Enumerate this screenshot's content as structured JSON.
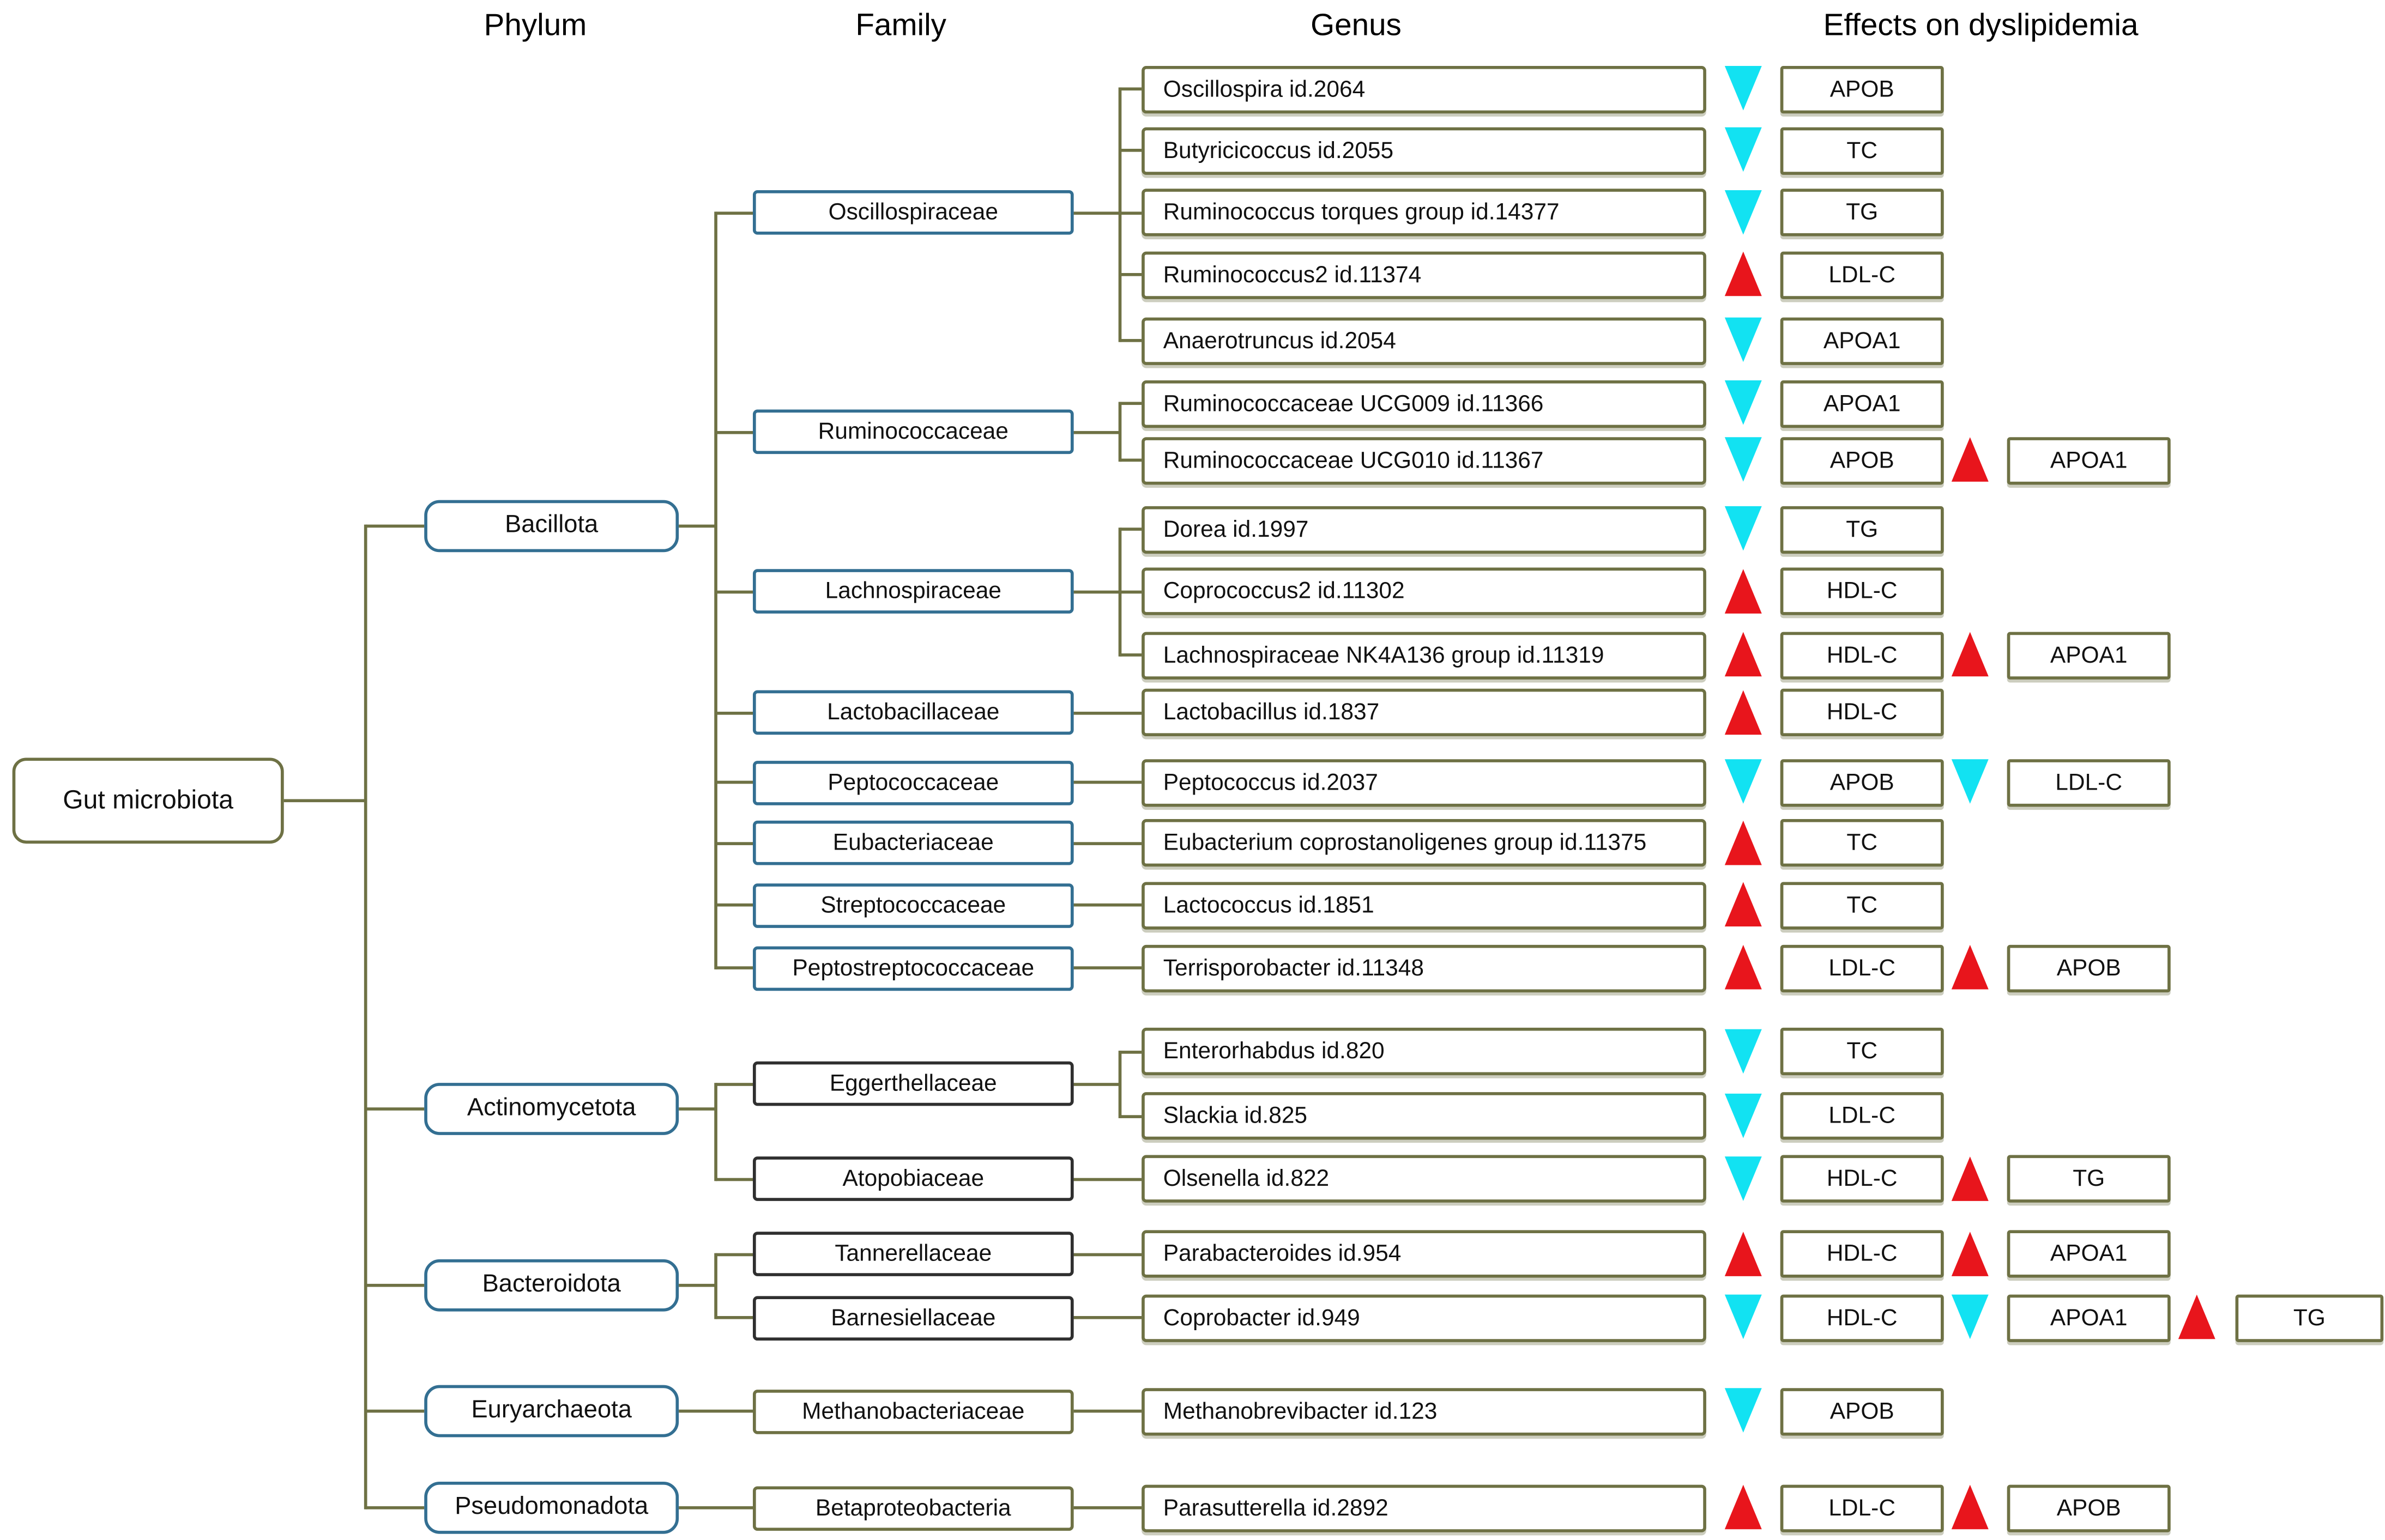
{
  "header": {
    "columns": [
      "Phylum",
      "Family",
      "Genus",
      "Effects on dyslipidemia"
    ]
  },
  "root": {
    "label": "Gut microbiota"
  },
  "colors": {
    "increase_marker": "#e8151c",
    "decrease_marker": "#12e2f2",
    "connector_line": "#6e7144",
    "phylum_border": "#336f92",
    "family_border_blue": "#336f92",
    "family_border_dark": "#2f2f2f",
    "family_border_olive": "#6e7144"
  },
  "phyla": [
    {
      "label": "Bacillota",
      "families": [
        0,
        1,
        2,
        3,
        4,
        5,
        6,
        7
      ]
    },
    {
      "label": "Actinomycetota",
      "families": [
        8,
        9
      ]
    },
    {
      "label": "Bacteroidota",
      "families": [
        10,
        11
      ]
    },
    {
      "label": "Euryarchaeota",
      "families": [
        12
      ]
    },
    {
      "label": "Pseudomonadota",
      "families": [
        13
      ]
    }
  ],
  "families": [
    {
      "label": "Oscillospiraceae",
      "style": "blue",
      "genera": [
        0,
        1,
        2,
        3,
        4
      ]
    },
    {
      "label": "Ruminococcaceae",
      "style": "blue",
      "genera": [
        5,
        6
      ]
    },
    {
      "label": "Lachnospiraceae",
      "style": "blue",
      "genera": [
        7,
        8,
        9
      ]
    },
    {
      "label": "Lactobacillaceae",
      "style": "blue",
      "genera": [
        10
      ]
    },
    {
      "label": "Peptococcaceae",
      "style": "blue",
      "genera": [
        11
      ]
    },
    {
      "label": "Eubacteriaceae",
      "style": "blue",
      "genera": [
        12
      ]
    },
    {
      "label": "Streptococcaceae",
      "style": "blue",
      "genera": [
        13
      ]
    },
    {
      "label": "Peptostreptococcaceae",
      "style": "blue",
      "genera": [
        14
      ]
    },
    {
      "label": "Eggerthellaceae",
      "style": "dark",
      "genera": [
        15,
        16
      ]
    },
    {
      "label": "Atopobiaceae",
      "style": "dark",
      "genera": [
        17
      ]
    },
    {
      "label": "Tannerellaceae",
      "style": "dark",
      "genera": [
        18
      ]
    },
    {
      "label": "Barnesiellaceae",
      "style": "dark",
      "genera": [
        19
      ]
    },
    {
      "label": "Methanobacteriaceae",
      "style": "olive",
      "genera": [
        20
      ]
    },
    {
      "label": "Betaproteobacteria",
      "style": "olive",
      "genera": [
        21
      ]
    }
  ],
  "genera": [
    {
      "label": "Oscillospira id.2064",
      "effects": [
        {
          "change": "decrease",
          "marker": "APOB"
        }
      ]
    },
    {
      "label": "Butyricicoccus id.2055",
      "effects": [
        {
          "change": "decrease",
          "marker": "TC"
        }
      ]
    },
    {
      "label": "Ruminococcus torques group id.14377",
      "effects": [
        {
          "change": "decrease",
          "marker": "TG"
        }
      ]
    },
    {
      "label": "Ruminococcus2 id.11374",
      "effects": [
        {
          "change": "increase",
          "marker": "LDL-C"
        }
      ]
    },
    {
      "label": "Anaerotruncus id.2054",
      "effects": [
        {
          "change": "decrease",
          "marker": "APOA1"
        }
      ]
    },
    {
      "label": "Ruminococcaceae UCG009 id.11366",
      "effects": [
        {
          "change": "decrease",
          "marker": "APOA1"
        }
      ]
    },
    {
      "label": "Ruminococcaceae UCG010 id.11367",
      "effects": [
        {
          "change": "decrease",
          "marker": "APOB"
        },
        {
          "change": "increase",
          "marker": "APOA1"
        }
      ]
    },
    {
      "label": "Dorea id.1997",
      "effects": [
        {
          "change": "decrease",
          "marker": "TG"
        }
      ]
    },
    {
      "label": "Coprococcus2 id.11302",
      "effects": [
        {
          "change": "increase",
          "marker": "HDL-C"
        }
      ]
    },
    {
      "label": "Lachnospiraceae NK4A136 group id.11319",
      "effects": [
        {
          "change": "increase",
          "marker": "HDL-C"
        },
        {
          "change": "increase",
          "marker": "APOA1"
        }
      ]
    },
    {
      "label": "Lactobacillus id.1837",
      "effects": [
        {
          "change": "increase",
          "marker": "HDL-C"
        }
      ]
    },
    {
      "label": "Peptococcus id.2037",
      "effects": [
        {
          "change": "decrease",
          "marker": "APOB"
        },
        {
          "change": "decrease",
          "marker": "LDL-C"
        }
      ]
    },
    {
      "label": "Eubacterium coprostanoligenes group id.11375",
      "effects": [
        {
          "change": "increase",
          "marker": "TC"
        }
      ]
    },
    {
      "label": "Lactococcus id.1851",
      "effects": [
        {
          "change": "increase",
          "marker": "TC"
        }
      ]
    },
    {
      "label": "Terrisporobacter id.11348",
      "effects": [
        {
          "change": "increase",
          "marker": "LDL-C"
        },
        {
          "change": "increase",
          "marker": "APOB"
        }
      ]
    },
    {
      "label": "Enterorhabdus id.820",
      "effects": [
        {
          "change": "decrease",
          "marker": "TC"
        }
      ]
    },
    {
      "label": "Slackia id.825",
      "effects": [
        {
          "change": "decrease",
          "marker": "LDL-C"
        }
      ]
    },
    {
      "label": "Olsenella id.822",
      "effects": [
        {
          "change": "decrease",
          "marker": "HDL-C"
        },
        {
          "change": "increase",
          "marker": "TG"
        }
      ]
    },
    {
      "label": "Parabacteroides id.954",
      "effects": [
        {
          "change": "increase",
          "marker": "HDL-C"
        },
        {
          "change": "increase",
          "marker": "APOA1"
        }
      ]
    },
    {
      "label": "Coprobacter id.949",
      "effects": [
        {
          "change": "decrease",
          "marker": "HDL-C"
        },
        {
          "change": "decrease",
          "marker": "APOA1"
        },
        {
          "change": "increase",
          "marker": "TG"
        }
      ]
    },
    {
      "label": "Methanobrevibacter id.123",
      "effects": [
        {
          "change": "decrease",
          "marker": "APOB"
        }
      ]
    },
    {
      "label": "Parasutterella id.2892",
      "effects": [
        {
          "change": "increase",
          "marker": "LDL-C"
        },
        {
          "change": "increase",
          "marker": "APOB"
        }
      ]
    }
  ]
}
